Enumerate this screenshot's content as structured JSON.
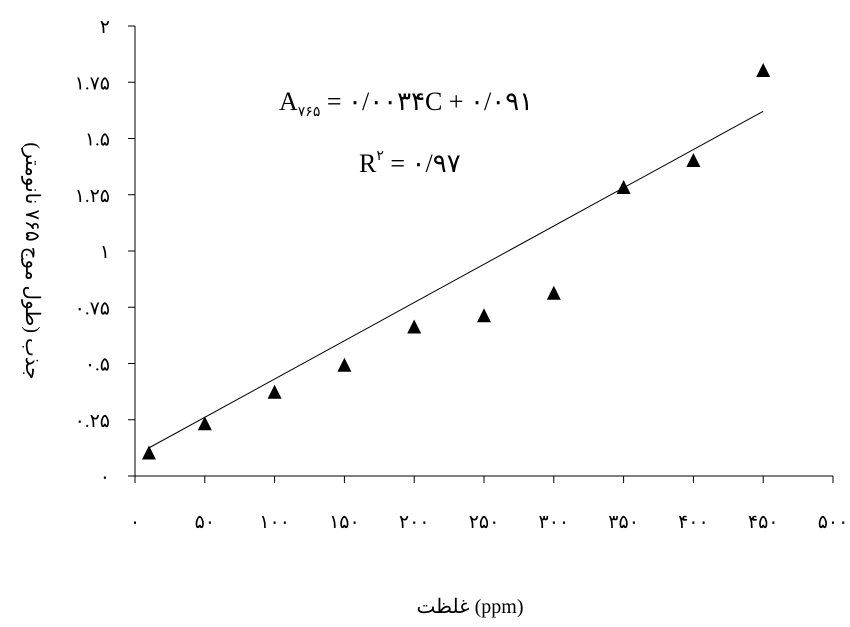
{
  "chart_data": {
    "type": "scatter",
    "title": "",
    "xlabel": "غلظت (ppm)",
    "ylabel": "جذب (طول موج ۷۶۵ نانومتر)",
    "xlim": [
      0,
      500
    ],
    "ylim": [
      0,
      2
    ],
    "x_ticks": [
      0,
      50,
      100,
      150,
      200,
      250,
      300,
      350,
      400,
      450,
      500
    ],
    "x_tick_labels": [
      "۰",
      "۵۰",
      "۱۰۰",
      "۱۵۰",
      "۲۰۰",
      "۲۵۰",
      "۳۰۰",
      "۳۵۰",
      "۴۰۰",
      "۴۵۰",
      "۵۰۰"
    ],
    "y_ticks": [
      0,
      0.25,
      0.5,
      0.75,
      1,
      1.25,
      1.5,
      1.75,
      2
    ],
    "y_tick_labels": [
      "۰",
      "۰.۲۵",
      "۰.۵",
      "۰.۷۵",
      "۱",
      "۱.۲۵",
      "۱.۵",
      "۱.۷۵",
      "۲"
    ],
    "grid": false,
    "series": [
      {
        "marker": "triangle",
        "x": [
          10,
          50,
          100,
          150,
          200,
          250,
          300,
          350,
          400,
          450
        ],
        "y": [
          0.1,
          0.23,
          0.37,
          0.49,
          0.66,
          0.71,
          0.81,
          1.28,
          1.4,
          1.8
        ]
      }
    ],
    "trendline": {
      "x_range": [
        10,
        450
      ],
      "slope": 0.0034,
      "intercept": 0.091
    },
    "annotations": {
      "equation_main": "A",
      "equation_sub": "۷۶۵",
      "equation_rest": " = ۰/۰۰۳۴C + ۰/۰۹۱",
      "r2_main": "R",
      "r2_sup": "۲",
      "r2_rest": " = ۰/۹۷"
    }
  }
}
